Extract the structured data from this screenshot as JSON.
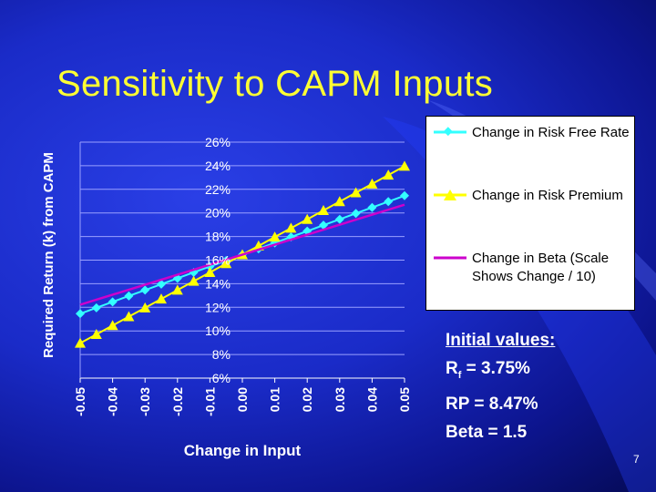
{
  "slide": {
    "title": "Sensitivity to CAPM Inputs",
    "page_number": "7"
  },
  "initial_values": {
    "heading": "Initial values:",
    "rf_label": "R",
    "rf_sub": "f",
    "rf_value": " = 3.75%",
    "rp_line": "RP = 8.47%",
    "beta_line": "Beta = 1.5"
  },
  "colors": {
    "title": "#ffff33",
    "risk_free": "#33ffff",
    "risk_premium": "#ffff00",
    "beta": "#cc00cc",
    "grid": "#9aa0ff",
    "text": "#ffffff"
  },
  "chart_data": {
    "type": "line",
    "title": "",
    "xlabel": "Change in Input",
    "ylabel": "Required Return (k) from CAPM",
    "x_tick_labels": [
      "-0.05",
      "-0.04",
      "-0.03",
      "-0.02",
      "-0.01",
      "0.00",
      "0.01",
      "0.02",
      "0.03",
      "0.04",
      "0.05"
    ],
    "y_tick_labels": [
      "6%",
      "8%",
      "10%",
      "12%",
      "14%",
      "16%",
      "18%",
      "20%",
      "22%",
      "24%",
      "26%"
    ],
    "xlim": [
      -0.05,
      0.05
    ],
    "ylim": [
      0.06,
      0.26
    ],
    "grid": true,
    "legend_position": "right",
    "series": [
      {
        "name": "Change in Risk Free Rate",
        "marker": "diamond",
        "color": "#33ffff",
        "x": [
          -0.05,
          -0.045,
          -0.04,
          -0.035,
          -0.03,
          -0.025,
          -0.02,
          -0.015,
          -0.01,
          -0.005,
          0.0,
          0.005,
          0.01,
          0.015,
          0.02,
          0.025,
          0.03,
          0.035,
          0.04,
          0.045,
          0.05
        ],
        "y": [
          0.1146,
          0.1196,
          0.1246,
          0.1296,
          0.1346,
          0.1396,
          0.1446,
          0.1496,
          0.1546,
          0.1596,
          0.1646,
          0.1696,
          0.1746,
          0.1796,
          0.1846,
          0.1896,
          0.1946,
          0.1996,
          0.2046,
          0.2096,
          0.2146
        ]
      },
      {
        "name": "Change in Risk Premium",
        "marker": "triangle",
        "color": "#ffff00",
        "x": [
          -0.05,
          -0.045,
          -0.04,
          -0.035,
          -0.03,
          -0.025,
          -0.02,
          -0.015,
          -0.01,
          -0.005,
          0.0,
          0.005,
          0.01,
          0.015,
          0.02,
          0.025,
          0.03,
          0.035,
          0.04,
          0.045,
          0.05
        ],
        "y": [
          0.0896,
          0.0971,
          0.1046,
          0.1121,
          0.1196,
          0.1271,
          0.1346,
          0.1421,
          0.1496,
          0.1571,
          0.1646,
          0.1721,
          0.1796,
          0.1871,
          0.1946,
          0.2021,
          0.2096,
          0.2171,
          0.2246,
          0.2321,
          0.2396
        ]
      },
      {
        "name": "Change in Beta (Scale Shows Change / 10)",
        "marker": "none",
        "color": "#cc00cc",
        "x": [
          -0.05,
          0.05
        ],
        "y": [
          0.1222,
          0.207
        ]
      }
    ]
  },
  "legend": {
    "items": [
      {
        "label": "Change in Risk Free Rate",
        "marker": "diamond",
        "color": "#33ffff"
      },
      {
        "label": "Change in Risk Premium",
        "marker": "triangle",
        "color": "#ffff00"
      },
      {
        "label": "Change in Beta (Scale Shows Change / 10)",
        "marker": "none",
        "color": "#cc00cc"
      }
    ]
  }
}
